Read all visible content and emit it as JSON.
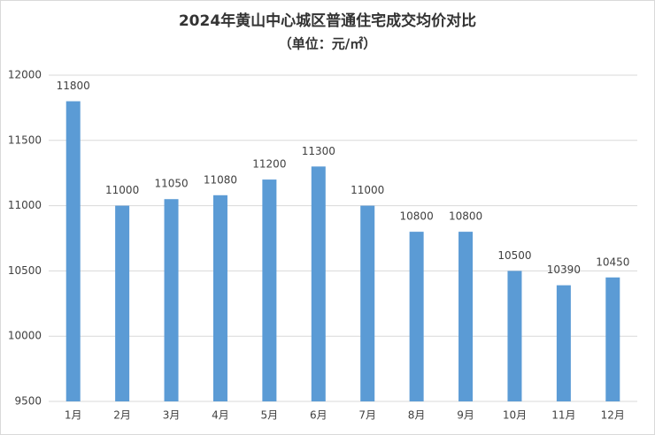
{
  "chart_data": {
    "type": "bar",
    "title": "2024年黄山中心城区普通住宅成交均价对比",
    "subtitle": "（单位：元/㎡）",
    "categories": [
      "1月",
      "2月",
      "3月",
      "4月",
      "5月",
      "6月",
      "7月",
      "8月",
      "9月",
      "10月",
      "11月",
      "12月"
    ],
    "values": [
      11800,
      11000,
      11050,
      11080,
      11200,
      11300,
      11000,
      10800,
      10800,
      10500,
      10390,
      10450
    ],
    "color": "#5b9bd5",
    "ylim": [
      9500,
      12000
    ],
    "yticks": [
      9500,
      10000,
      10500,
      11000,
      11500,
      12000
    ],
    "grid": true
  }
}
